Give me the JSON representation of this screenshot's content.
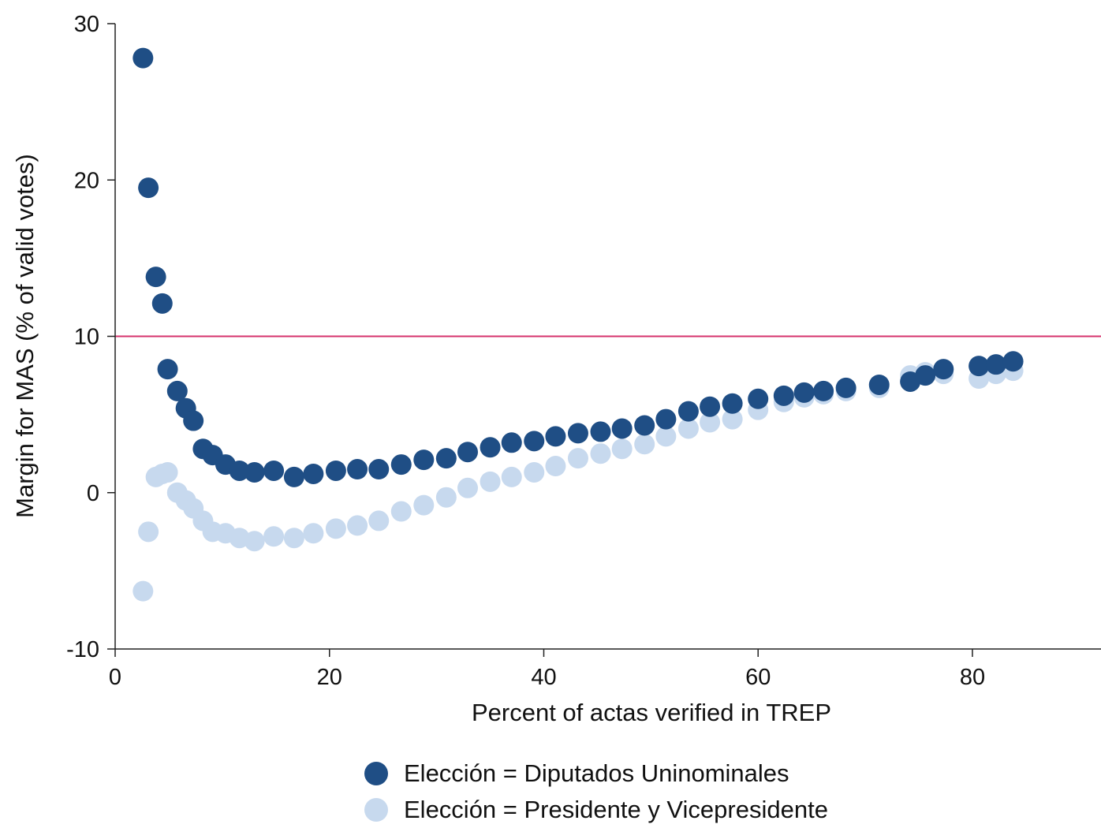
{
  "chart_data": {
    "type": "scatter",
    "xlabel": "Percent of actas verified in TREP",
    "ylabel": "Margin for MAS (% of valid votes)",
    "xlim": [
      0,
      92
    ],
    "ylim": [
      -10,
      30
    ],
    "xticks": [
      "0",
      "20",
      "40",
      "60",
      "80"
    ],
    "yticks": [
      "-10",
      "0",
      "10",
      "20",
      "30"
    ],
    "reference_line": {
      "y": 10,
      "color": "#d6336c"
    },
    "grid": false,
    "legend_position": "bottom",
    "series": [
      {
        "name": "Elección = Diputados Uninominales",
        "color": "#1f4e85",
        "points": [
          [
            2.6,
            27.8
          ],
          [
            3.1,
            19.5
          ],
          [
            3.8,
            13.8
          ],
          [
            4.4,
            12.1
          ],
          [
            4.9,
            7.9
          ],
          [
            5.8,
            6.5
          ],
          [
            6.6,
            5.4
          ],
          [
            7.3,
            4.6
          ],
          [
            8.2,
            2.8
          ],
          [
            9.1,
            2.4
          ],
          [
            10.3,
            1.8
          ],
          [
            11.6,
            1.4
          ],
          [
            13.0,
            1.3
          ],
          [
            14.8,
            1.4
          ],
          [
            16.7,
            1.0
          ],
          [
            18.5,
            1.2
          ],
          [
            20.6,
            1.4
          ],
          [
            22.6,
            1.5
          ],
          [
            24.6,
            1.5
          ],
          [
            26.7,
            1.8
          ],
          [
            28.8,
            2.1
          ],
          [
            30.9,
            2.2
          ],
          [
            32.9,
            2.6
          ],
          [
            35.0,
            2.9
          ],
          [
            37.0,
            3.2
          ],
          [
            39.1,
            3.3
          ],
          [
            41.1,
            3.6
          ],
          [
            43.2,
            3.8
          ],
          [
            45.3,
            3.9
          ],
          [
            47.3,
            4.1
          ],
          [
            49.4,
            4.3
          ],
          [
            51.4,
            4.7
          ],
          [
            53.5,
            5.2
          ],
          [
            55.5,
            5.5
          ],
          [
            57.6,
            5.7
          ],
          [
            60.0,
            6.0
          ],
          [
            62.4,
            6.2
          ],
          [
            64.3,
            6.4
          ],
          [
            66.1,
            6.5
          ],
          [
            68.2,
            6.7
          ],
          [
            71.3,
            6.9
          ],
          [
            74.2,
            7.1
          ],
          [
            75.6,
            7.5
          ],
          [
            77.3,
            7.9
          ],
          [
            80.6,
            8.1
          ],
          [
            82.2,
            8.2
          ],
          [
            83.8,
            8.4
          ]
        ]
      },
      {
        "name": "Elección = Presidente y Vicepresidente",
        "color": "#c7d9ee",
        "points": [
          [
            2.6,
            -6.3
          ],
          [
            3.1,
            -2.5
          ],
          [
            3.8,
            1.0
          ],
          [
            4.4,
            1.2
          ],
          [
            4.9,
            1.3
          ],
          [
            5.8,
            0.0
          ],
          [
            6.6,
            -0.5
          ],
          [
            7.3,
            -1.0
          ],
          [
            8.2,
            -1.8
          ],
          [
            9.1,
            -2.5
          ],
          [
            10.3,
            -2.6
          ],
          [
            11.6,
            -2.9
          ],
          [
            13.0,
            -3.1
          ],
          [
            14.8,
            -2.8
          ],
          [
            16.7,
            -2.9
          ],
          [
            18.5,
            -2.6
          ],
          [
            20.6,
            -2.3
          ],
          [
            22.6,
            -2.1
          ],
          [
            24.6,
            -1.8
          ],
          [
            26.7,
            -1.2
          ],
          [
            28.8,
            -0.8
          ],
          [
            30.9,
            -0.3
          ],
          [
            32.9,
            0.3
          ],
          [
            35.0,
            0.7
          ],
          [
            37.0,
            1.0
          ],
          [
            39.1,
            1.3
          ],
          [
            41.1,
            1.7
          ],
          [
            43.2,
            2.2
          ],
          [
            45.3,
            2.5
          ],
          [
            47.3,
            2.8
          ],
          [
            49.4,
            3.1
          ],
          [
            51.4,
            3.6
          ],
          [
            53.5,
            4.1
          ],
          [
            55.5,
            4.5
          ],
          [
            57.6,
            4.7
          ],
          [
            60.0,
            5.3
          ],
          [
            62.4,
            5.8
          ],
          [
            64.3,
            6.1
          ],
          [
            66.1,
            6.3
          ],
          [
            68.2,
            6.5
          ],
          [
            71.3,
            6.7
          ],
          [
            74.2,
            7.5
          ],
          [
            75.6,
            7.7
          ],
          [
            77.3,
            7.6
          ],
          [
            80.6,
            7.3
          ],
          [
            82.2,
            7.6
          ],
          [
            83.8,
            7.8
          ]
        ]
      }
    ]
  }
}
